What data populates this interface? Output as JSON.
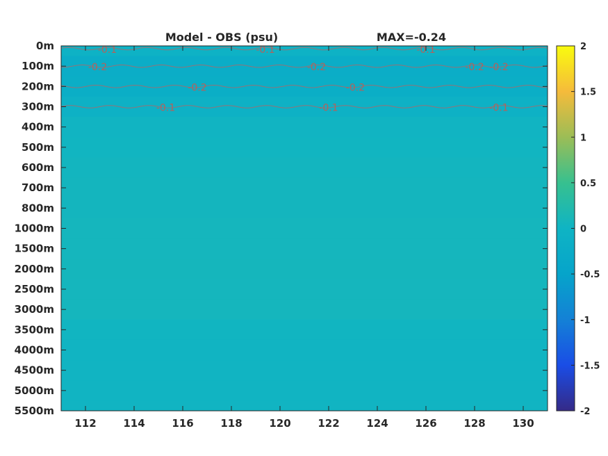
{
  "chart_data": {
    "type": "heatmap",
    "title": "Model - OBS (psu)",
    "subtitle": "MAX=-0.24",
    "x_ticks": [
      112,
      114,
      116,
      118,
      120,
      122,
      124,
      126,
      128,
      130
    ],
    "x_range": [
      111,
      131
    ],
    "y_ticks": [
      "0m",
      "100m",
      "200m",
      "300m",
      "400m",
      "500m",
      "600m",
      "700m",
      "800m",
      "1000m",
      "1500m",
      "2000m",
      "2500m",
      "3000m",
      "3500m",
      "4000m",
      "4500m",
      "5000m",
      "5500m"
    ],
    "colorbar": {
      "range": [
        -2,
        2
      ],
      "ticks": [
        2,
        1.5,
        1,
        0.5,
        0,
        -0.5,
        -1,
        -1.5,
        -2
      ],
      "colormap": "parula"
    },
    "layers": [
      {
        "depth": "0m",
        "value": -0.05
      },
      {
        "depth": "100m",
        "value": -0.22
      },
      {
        "depth": "200m",
        "value": -0.2
      },
      {
        "depth": "300m",
        "value": -0.08
      },
      {
        "depth": "400m",
        "value": 0.02
      },
      {
        "depth": "500m",
        "value": 0.03
      },
      {
        "depth": "600m",
        "value": 0.05
      },
      {
        "depth": "700m",
        "value": 0.06
      },
      {
        "depth": "800m",
        "value": 0.06
      },
      {
        "depth": "1000m",
        "value": 0.07
      },
      {
        "depth": "1500m",
        "value": 0.07
      },
      {
        "depth": "2000m",
        "value": 0.08
      },
      {
        "depth": "2500m",
        "value": 0.07
      },
      {
        "depth": "3000m",
        "value": 0.07
      },
      {
        "depth": "3500m",
        "value": 0.03
      },
      {
        "depth": "4000m",
        "value": 0.02
      },
      {
        "depth": "4500m",
        "value": 0.02
      },
      {
        "depth": "5000m",
        "value": 0.02
      },
      {
        "depth": "5500m",
        "value": 0.02
      }
    ],
    "contours": [
      {
        "level": -0.1,
        "depth": "0m",
        "label_lons": [
          112.9,
          119.4,
          126.0
        ]
      },
      {
        "level": -0.2,
        "depth": "100m",
        "label_lons": [
          112.5,
          121.5,
          128.0,
          129.0
        ]
      },
      {
        "level": -0.2,
        "depth": "200m",
        "label_lons": [
          116.6,
          123.1
        ]
      },
      {
        "level": -0.1,
        "depth": "300m",
        "label_lons": [
          115.3,
          122.0,
          129.0
        ]
      }
    ]
  }
}
